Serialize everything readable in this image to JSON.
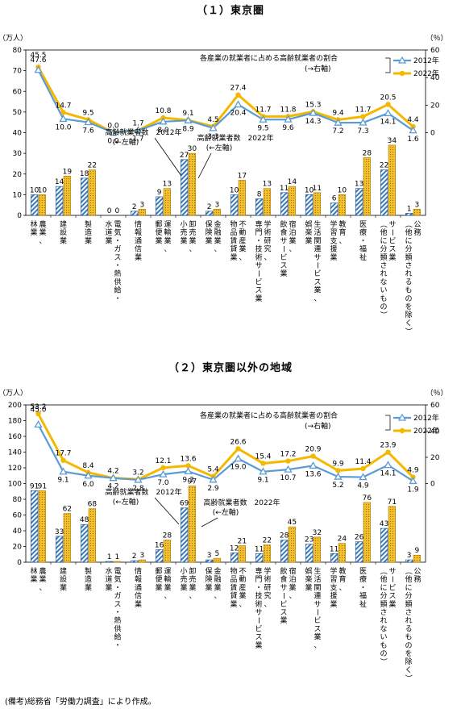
{
  "note": "(備考)総務省「労働力調査」により作成。",
  "legend": {
    "rate_caption": "各産業の就業者に占める高齢就業者の割合",
    "rate_axis": "(→右軸)",
    "y2012": "2012年",
    "y2022": "2022年"
  },
  "annotations": {
    "count_2012_line1": "高齢就業者数　2012年",
    "count_2012_line2": "(←左軸)",
    "count_2022_line1": "高齢就業者数　2022年",
    "count_2022_line2": "(←左軸)"
  },
  "colors": {
    "bar2012_stripe": "#3a7bbf",
    "bar2022_fill": "#f2c12e",
    "line2012": "#5b9bd5",
    "line2022": "#f5b800"
  },
  "chart_data": [
    {
      "type": "bar",
      "title": "（１）東京圏",
      "ylabel_left": "（万人）",
      "ylabel_right": "（％）",
      "ylim_left": [
        0,
        80
      ],
      "yticks_left": [
        0,
        10,
        20,
        30,
        40,
        50,
        60,
        70,
        80
      ],
      "ylim_right": [
        -60,
        60
      ],
      "yticks_right": [
        0,
        20,
        40,
        60
      ],
      "categories": [
        "農業、林業",
        "建設業",
        "製造業",
        "電気・ガス・熱供給・水道業",
        "情報通信業",
        "運輸業、郵便業",
        "卸売業、小売業",
        "金融業、保険業",
        "不動産業、物品賃貸業",
        "学術研究、専門・技術サービス業",
        "宿泊業、飲食サービス業",
        "生活関連サービス業、娯楽業",
        "教育、学習支援業",
        "医療、福祉",
        "サービス業（他に分類されないもの）",
        "公務（他に分類されるものを除く）"
      ],
      "series": [
        {
          "name": "高齢就業者数 2012年",
          "axis": "left",
          "kind": "bar",
          "values": [
            10,
            14,
            18,
            0,
            2,
            9,
            27,
            2,
            10,
            8,
            11,
            10,
            6,
            13,
            22,
            1
          ]
        },
        {
          "name": "高齢就業者数 2022年",
          "axis": "left",
          "kind": "bar",
          "values": [
            10,
            19,
            22,
            0,
            3,
            13,
            30,
            3,
            17,
            13,
            14,
            11,
            10,
            28,
            34,
            3
          ]
        },
        {
          "name": "2012年",
          "axis": "right",
          "kind": "line",
          "values": [
            45.5,
            10.0,
            7.6,
            0.0,
            1.7,
            8.0,
            8.9,
            3.3,
            20.4,
            9.5,
            9.6,
            14.3,
            7.2,
            7.3,
            14.1,
            1.6
          ]
        },
        {
          "name": "2022年",
          "axis": "right",
          "kind": "line",
          "values": [
            47.6,
            14.7,
            9.5,
            0.0,
            1.7,
            10.8,
            9.1,
            4.5,
            27.4,
            11.7,
            11.8,
            15.3,
            9.4,
            11.7,
            20.5,
            4.4
          ]
        }
      ]
    },
    {
      "type": "bar",
      "title": "（２）東京圏以外の地域",
      "ylabel_left": "（万人）",
      "ylabel_right": "（％）",
      "ylim_left": [
        0,
        200
      ],
      "yticks_left": [
        0,
        20,
        40,
        60,
        80,
        100,
        120,
        140,
        160,
        180,
        200
      ],
      "ylim_right": [
        -60,
        60
      ],
      "yticks_right": [
        0,
        20,
        40,
        60
      ],
      "categories": [
        "農業、林業",
        "建設業",
        "製造業",
        "電気・ガス・熱供給・水道業",
        "情報通信業",
        "運輸業、郵便業",
        "卸売業、小売業",
        "金融業、保険業",
        "不動産業、物品賃貸業",
        "学術研究、専門・技術サービス業",
        "宿泊業、飲食サービス業",
        "生活関連サービス業、娯楽業",
        "教育、学習支援業",
        "医療、福祉",
        "サービス業（他に分類されないもの）",
        "公務（他に分類されるものを除く）"
      ],
      "series": [
        {
          "name": "高齢就業者数 2012年",
          "axis": "left",
          "kind": "bar",
          "values": [
            91,
            33,
            48,
            1,
            2,
            16,
            69,
            3,
            12,
            11,
            28,
            23,
            11,
            26,
            43,
            3
          ]
        },
        {
          "name": "高齢就業者数 2022年",
          "axis": "left",
          "kind": "bar",
          "values": [
            91,
            62,
            68,
            1,
            3,
            28,
            97,
            5,
            21,
            22,
            45,
            32,
            24,
            76,
            71,
            9
          ]
        },
        {
          "name": "2012年",
          "axis": "right",
          "kind": "line",
          "values": [
            45.0,
            9.1,
            6.0,
            4.2,
            2.8,
            7.0,
            9.3,
            2.9,
            19.0,
            9.1,
            10.7,
            13.6,
            5.2,
            4.9,
            14.1,
            1.9
          ]
        },
        {
          "name": "2022年",
          "axis": "right",
          "kind": "line",
          "values": [
            53.2,
            17.7,
            8.4,
            4.2,
            3.2,
            12.1,
            13.6,
            5.4,
            26.6,
            15.4,
            17.2,
            20.9,
            9.9,
            11.4,
            23.9,
            4.9
          ]
        }
      ]
    }
  ],
  "category_labels": [
    [
      "農業、",
      "林業"
    ],
    [
      "建設業"
    ],
    [
      "製造業"
    ],
    [
      "電気・ガス・熱供給・",
      "水道業"
    ],
    [
      "情報通信業"
    ],
    [
      "運輸業、",
      "郵便業"
    ],
    [
      "卸売業、",
      "小売業"
    ],
    [
      "金融業、",
      "保険業"
    ],
    [
      "不動産業、",
      "物品賃貸業"
    ],
    [
      "学術研究、",
      "専門・技術サービス業"
    ],
    [
      "宿泊業、",
      "飲食サービス業"
    ],
    [
      "生活関連サービス業、",
      "娯楽業"
    ],
    [
      "教育、",
      "学習支援業"
    ],
    [
      "医療・福祉"
    ],
    [
      "サービス業",
      "（他に分類されないもの）"
    ],
    [
      "公務",
      "（他に分類されるものを除く）"
    ]
  ]
}
